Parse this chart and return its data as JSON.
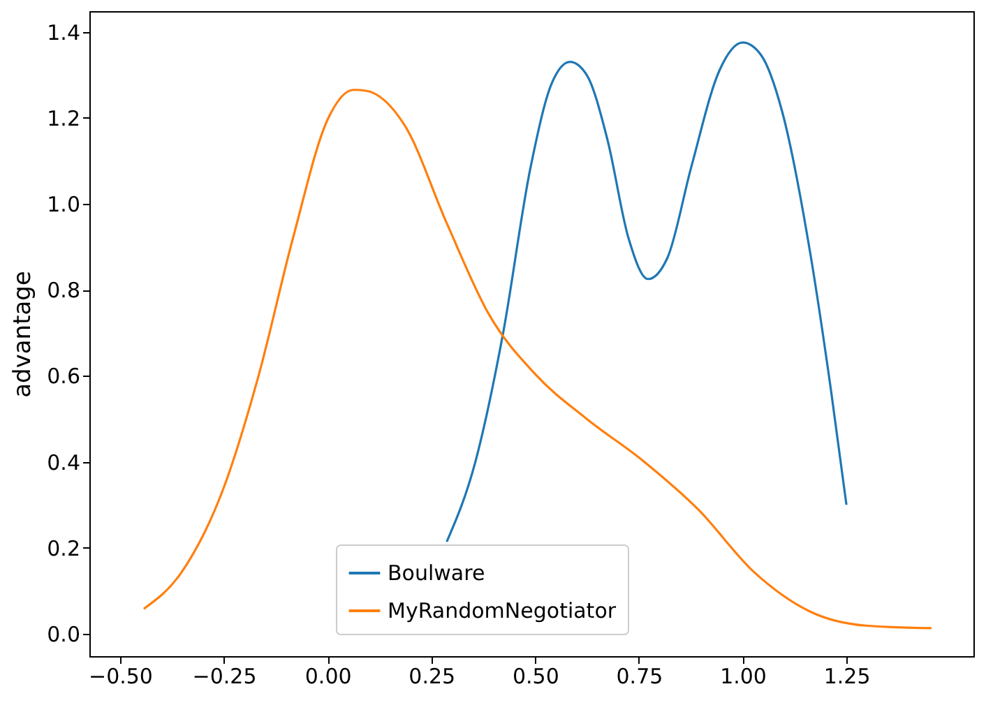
{
  "chart_data": {
    "type": "line",
    "ylabel": "advantage",
    "xlim": [
      -0.574,
      1.556
    ],
    "ylim": [
      -0.052,
      1.448
    ],
    "xticks": [
      {
        "value": -0.5,
        "label": "−0.50"
      },
      {
        "value": -0.25,
        "label": "−0.25"
      },
      {
        "value": 0,
        "label": "0.00"
      },
      {
        "value": 0.25,
        "label": "0.25"
      },
      {
        "value": 0.5,
        "label": "0.50"
      },
      {
        "value": 0.75,
        "label": "0.75"
      },
      {
        "value": 1,
        "label": "1.00"
      },
      {
        "value": 1.25,
        "label": "1.25"
      }
    ],
    "yticks": [
      {
        "value": 0,
        "label": "0.0"
      },
      {
        "value": 0.2,
        "label": "0.2"
      },
      {
        "value": 0.4,
        "label": "0.4"
      },
      {
        "value": 0.6,
        "label": "0.6"
      },
      {
        "value": 0.8,
        "label": "0.8"
      },
      {
        "value": 1,
        "label": "1.0"
      },
      {
        "value": 1.2,
        "label": "1.2"
      },
      {
        "value": 1.4,
        "label": "1.4"
      }
    ],
    "grid": false,
    "legend": "bottom",
    "marker": "none",
    "line_style": "solid",
    "series": [
      {
        "name": "Boulware",
        "color": "#1f77b4",
        "x": [
          0.287,
          0.356,
          0.422,
          0.489,
          0.54,
          0.584,
          0.624,
          0.674,
          0.725,
          0.772,
          0.819,
          0.876,
          0.944,
          1.0,
          1.045,
          1.095,
          1.162,
          1.213,
          1.25
        ],
        "values": [
          0.214,
          0.4,
          0.695,
          1.085,
          1.28,
          1.33,
          1.3,
          1.15,
          0.92,
          0.825,
          0.875,
          1.085,
          1.31,
          1.375,
          1.345,
          1.215,
          0.89,
          0.565,
          0.3
        ]
      },
      {
        "name": "MyRandomNegotiator",
        "color": "#ff7f0e",
        "x": [
          -0.443,
          -0.352,
          -0.251,
          -0.167,
          -0.083,
          0.001,
          0.062,
          0.092,
          0.186,
          0.287,
          0.388,
          0.5,
          0.624,
          0.759,
          0.893,
          1.028,
          1.162,
          1.297,
          1.455
        ],
        "values": [
          0.058,
          0.143,
          0.338,
          0.598,
          0.922,
          1.198,
          1.265,
          1.263,
          1.182,
          0.955,
          0.744,
          0.604,
          0.5,
          0.403,
          0.289,
          0.143,
          0.052,
          0.019,
          0.013
        ]
      }
    ]
  }
}
